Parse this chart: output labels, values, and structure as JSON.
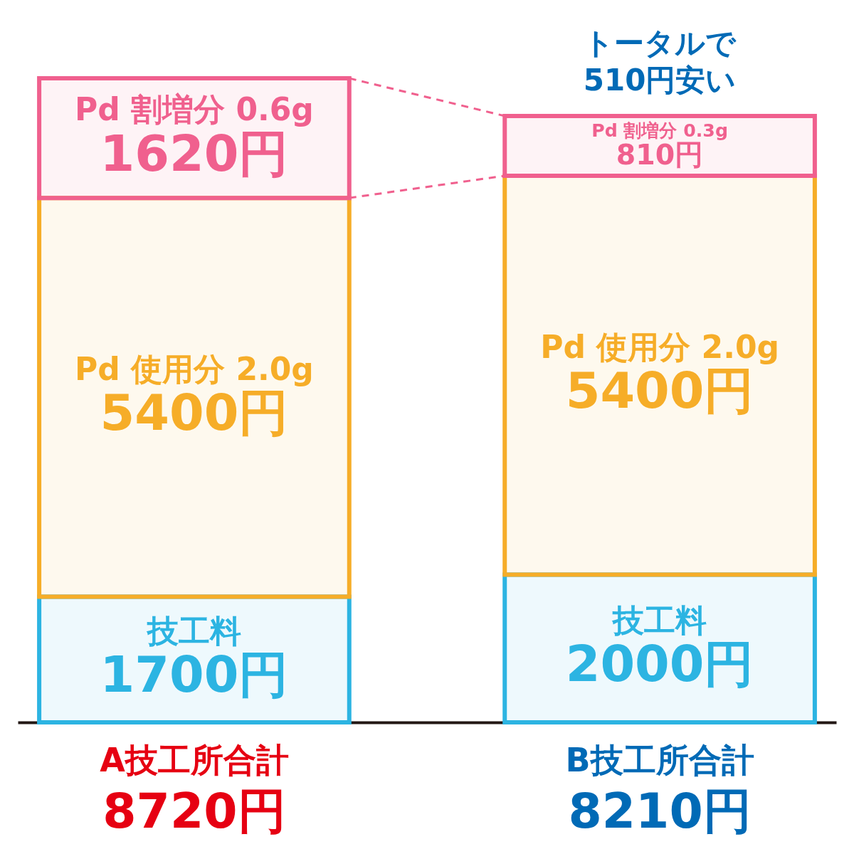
{
  "chart_data": {
    "type": "bar",
    "stacked": true,
    "categories": [
      "A技工所合計",
      "B技工所合計"
    ],
    "series": [
      {
        "name": "技工料",
        "color": "#2cb4e2",
        "values": [
          1700,
          2000
        ],
        "value_labels": [
          "1700円",
          "2000円"
        ]
      },
      {
        "name": "Pd 使用分 2.0g",
        "color": "#f6ad28",
        "values": [
          5400,
          5400
        ],
        "value_labels": [
          "5400円",
          "5400円"
        ]
      },
      {
        "color": "#f0608e",
        "values": [
          1620,
          810
        ],
        "value_labels": [
          "1620円",
          "810円"
        ]
      }
    ],
    "totals": [
      "8720円",
      "8210円"
    ],
    "annotations": [
      "Pd 割増分 0.6g",
      "Pd 割増分 0.3g",
      "トータルで",
      "510円安い"
    ]
  }
}
